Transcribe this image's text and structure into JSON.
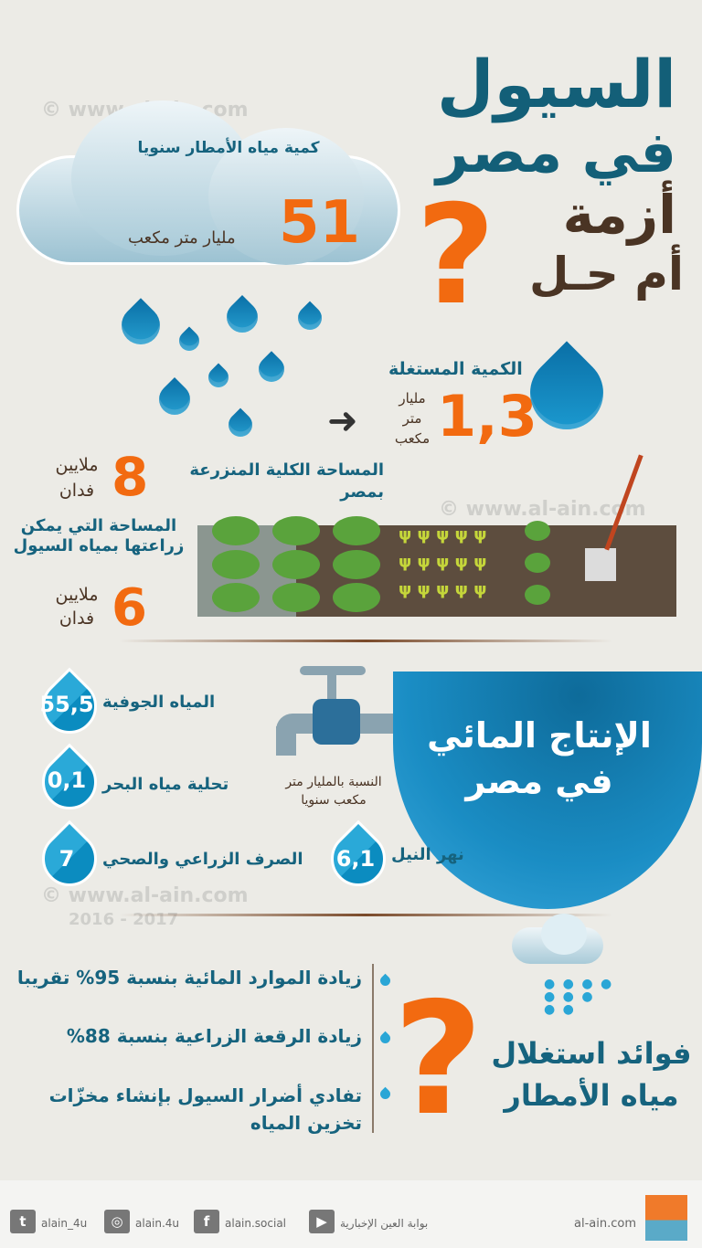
{
  "title": {
    "line1": "السيول",
    "line2": "في مصر",
    "line3": "أزمة",
    "line4": "أم حـل",
    "question_mark": "?"
  },
  "cloud": {
    "label": "كمية مياه الأمطار سنويا",
    "value": "51",
    "unit": "مليار متر مكعب"
  },
  "used": {
    "label": "الكمية المستغلة",
    "value": "1,3",
    "unit": "مليار متر مكعب"
  },
  "land": {
    "total_label": "المساحة الكلية المنزرعة بمصر",
    "total_value": "8",
    "total_unit": "ملايين فدان",
    "possible_label": "المساحة التي يمكن زراعتها بمياه السيول",
    "possible_value": "6",
    "possible_unit": "ملايين فدان"
  },
  "production": {
    "title": "الإنتاج المائي في مصر",
    "note": "النسبة بالمليار متر مكعب سنويا",
    "items": [
      {
        "label": "المياه الجوفية",
        "value": "55,5"
      },
      {
        "label": "تحلية مياه البحر",
        "value": "0,1"
      },
      {
        "label": "الصرف الزراعي والصحي",
        "value": "7"
      },
      {
        "label": "نهر النيل",
        "value": "6,1"
      }
    ]
  },
  "benefits": {
    "title": "فوائد استغلال مياه الأمطار",
    "items": [
      "زيادة الموارد المائية بنسبة 95% تقريبا",
      "زيادة الرقعة الزراعية بنسبة 88%",
      "تفادي أضرار السيول بإنشاء مخزّات تخزين المياه"
    ]
  },
  "watermark": {
    "site": "www.al-ain.com",
    "years": "2016 - 2017",
    "copyright": "©"
  },
  "footer": {
    "twitter": "alain_4u",
    "instagram": "alain.4u",
    "facebook": "alain.social",
    "youtube": "بوابة العين الإخبارية",
    "site": "al-ain.com",
    "logo": "العين"
  },
  "colors": {
    "teal": "#16637e",
    "orange": "#f26a10",
    "brown": "#4a3424",
    "water": "#2aa6d6"
  }
}
